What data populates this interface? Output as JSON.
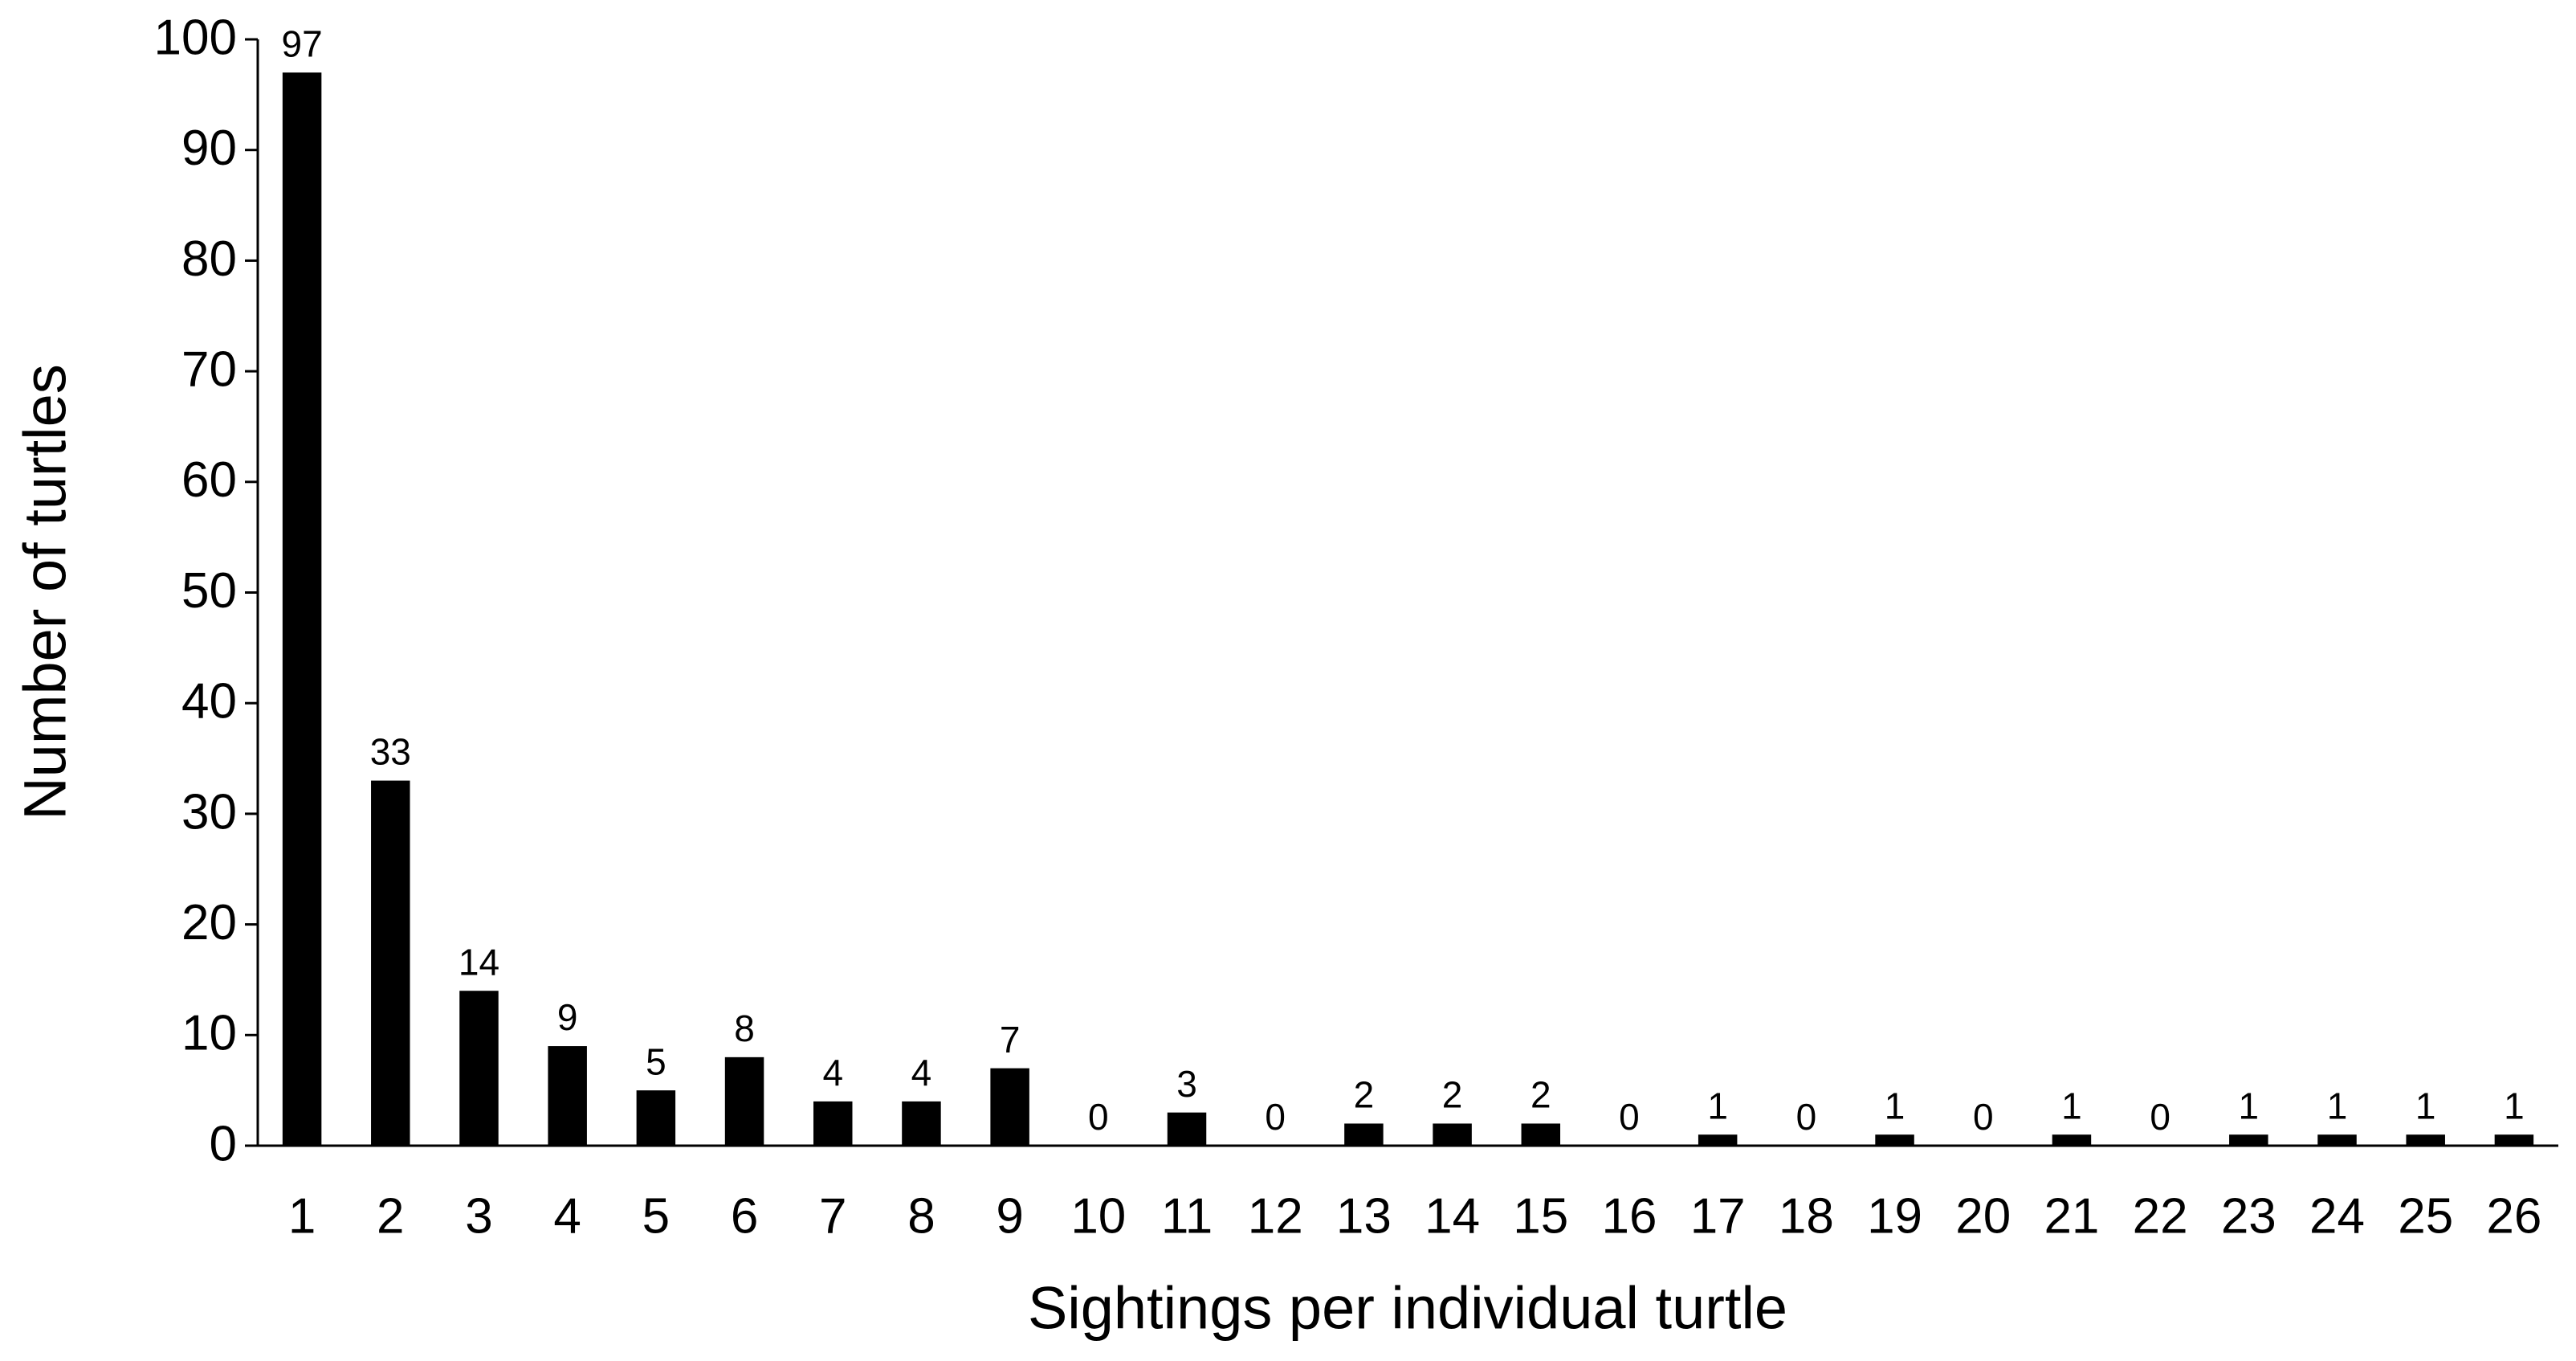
{
  "chart_data": {
    "type": "bar",
    "x_label": "Sightings per individual turtle",
    "y_label": "Number of turtles",
    "categories": [
      "1",
      "2",
      "3",
      "4",
      "5",
      "6",
      "7",
      "8",
      "9",
      "10",
      "11",
      "12",
      "13",
      "14",
      "15",
      "16",
      "17",
      "18",
      "19",
      "20",
      "21",
      "22",
      "23",
      "24",
      "25",
      "26"
    ],
    "values": [
      97,
      33,
      14,
      9,
      5,
      8,
      4,
      4,
      7,
      0,
      3,
      0,
      2,
      2,
      2,
      0,
      1,
      0,
      1,
      0,
      1,
      0,
      1,
      1,
      1,
      1
    ],
    "color": "#000000",
    "ylim": [
      0,
      100
    ],
    "yticks": [
      0,
      10,
      20,
      30,
      40,
      50,
      60,
      70,
      80,
      90,
      100
    ],
    "grid": false
  }
}
